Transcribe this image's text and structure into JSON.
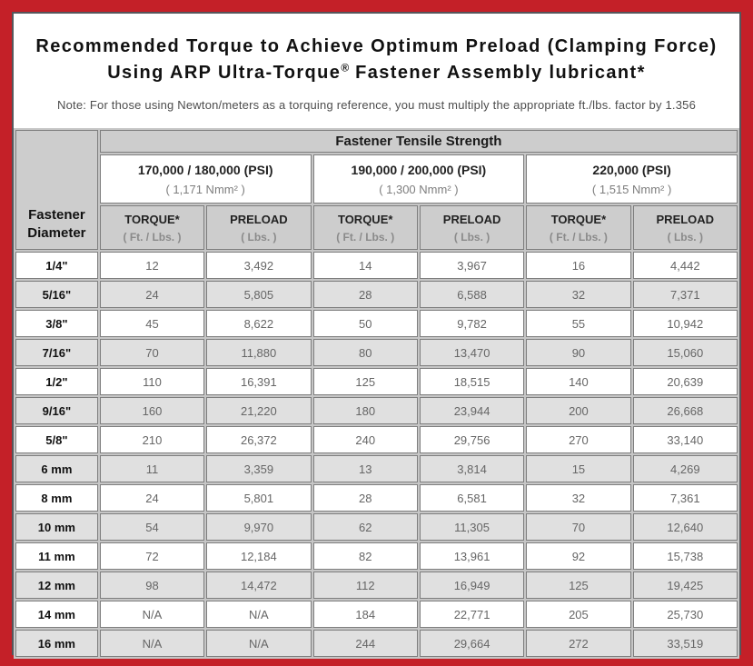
{
  "header": {
    "title_line1": "Recommended Torque to Achieve Optimum Preload (Clamping Force)",
    "title_line2_pre": "Using ARP Ultra-Torque",
    "title_line2_sup": "®",
    "title_line2_post": " Fastener Assembly lubricant*",
    "note": "Note: For those using Newton/meters as a torquing reference, you must multiply the appropriate ft./lbs. factor by 1.356"
  },
  "colors": {
    "frame_red": "#c42028",
    "header_gray": "#cdcdcd",
    "alt_row_gray": "#e0e0e0",
    "cell_border": "#7e7e7e"
  },
  "table": {
    "corner_label": "Fastener Diameter",
    "tensile_header": "Fastener Tensile Strength",
    "psi_groups": [
      {
        "psi": "170,000 / 180,000 (PSI)",
        "nmm": "( 1,171 Nmm² )"
      },
      {
        "psi": "190,000 / 200,000 (PSI)",
        "nmm": "( 1,300 Nmm² )"
      },
      {
        "psi": "220,000 (PSI)",
        "nmm": "( 1,515 Nmm² )"
      }
    ],
    "sub_headers": [
      {
        "label": "TORQUE*",
        "unit": "( Ft. / Lbs. )"
      },
      {
        "label": "PRELOAD",
        "unit": "( Lbs. )"
      },
      {
        "label": "TORQUE*",
        "unit": "( Ft. / Lbs. )"
      },
      {
        "label": "PRELOAD",
        "unit": "( Lbs. )"
      },
      {
        "label": "TORQUE*",
        "unit": "( Ft. / Lbs. )"
      },
      {
        "label": "PRELOAD",
        "unit": "( Lbs. )"
      }
    ],
    "rows": [
      {
        "diameter": "1/4\"",
        "values": [
          "12",
          "3,492",
          "14",
          "3,967",
          "16",
          "4,442"
        ]
      },
      {
        "diameter": "5/16\"",
        "values": [
          "24",
          "5,805",
          "28",
          "6,588",
          "32",
          "7,371"
        ]
      },
      {
        "diameter": "3/8\"",
        "values": [
          "45",
          "8,622",
          "50",
          "9,782",
          "55",
          "10,942"
        ]
      },
      {
        "diameter": "7/16\"",
        "values": [
          "70",
          "11,880",
          "80",
          "13,470",
          "90",
          "15,060"
        ]
      },
      {
        "diameter": "1/2\"",
        "values": [
          "110",
          "16,391",
          "125",
          "18,515",
          "140",
          "20,639"
        ]
      },
      {
        "diameter": "9/16\"",
        "values": [
          "160",
          "21,220",
          "180",
          "23,944",
          "200",
          "26,668"
        ]
      },
      {
        "diameter": "5/8\"",
        "values": [
          "210",
          "26,372",
          "240",
          "29,756",
          "270",
          "33,140"
        ]
      },
      {
        "diameter": "6 mm",
        "values": [
          "11",
          "3,359",
          "13",
          "3,814",
          "15",
          "4,269"
        ]
      },
      {
        "diameter": "8 mm",
        "values": [
          "24",
          "5,801",
          "28",
          "6,581",
          "32",
          "7,361"
        ]
      },
      {
        "diameter": "10 mm",
        "values": [
          "54",
          "9,970",
          "62",
          "11,305",
          "70",
          "12,640"
        ]
      },
      {
        "diameter": "11 mm",
        "values": [
          "72",
          "12,184",
          "82",
          "13,961",
          "92",
          "15,738"
        ]
      },
      {
        "diameter": "12 mm",
        "values": [
          "98",
          "14,472",
          "112",
          "16,949",
          "125",
          "19,425"
        ]
      },
      {
        "diameter": "14 mm",
        "values": [
          "N/A",
          "N/A",
          "184",
          "22,771",
          "205",
          "25,730"
        ]
      },
      {
        "diameter": "16 mm",
        "values": [
          "N/A",
          "N/A",
          "244",
          "29,664",
          "272",
          "33,519"
        ]
      }
    ]
  }
}
